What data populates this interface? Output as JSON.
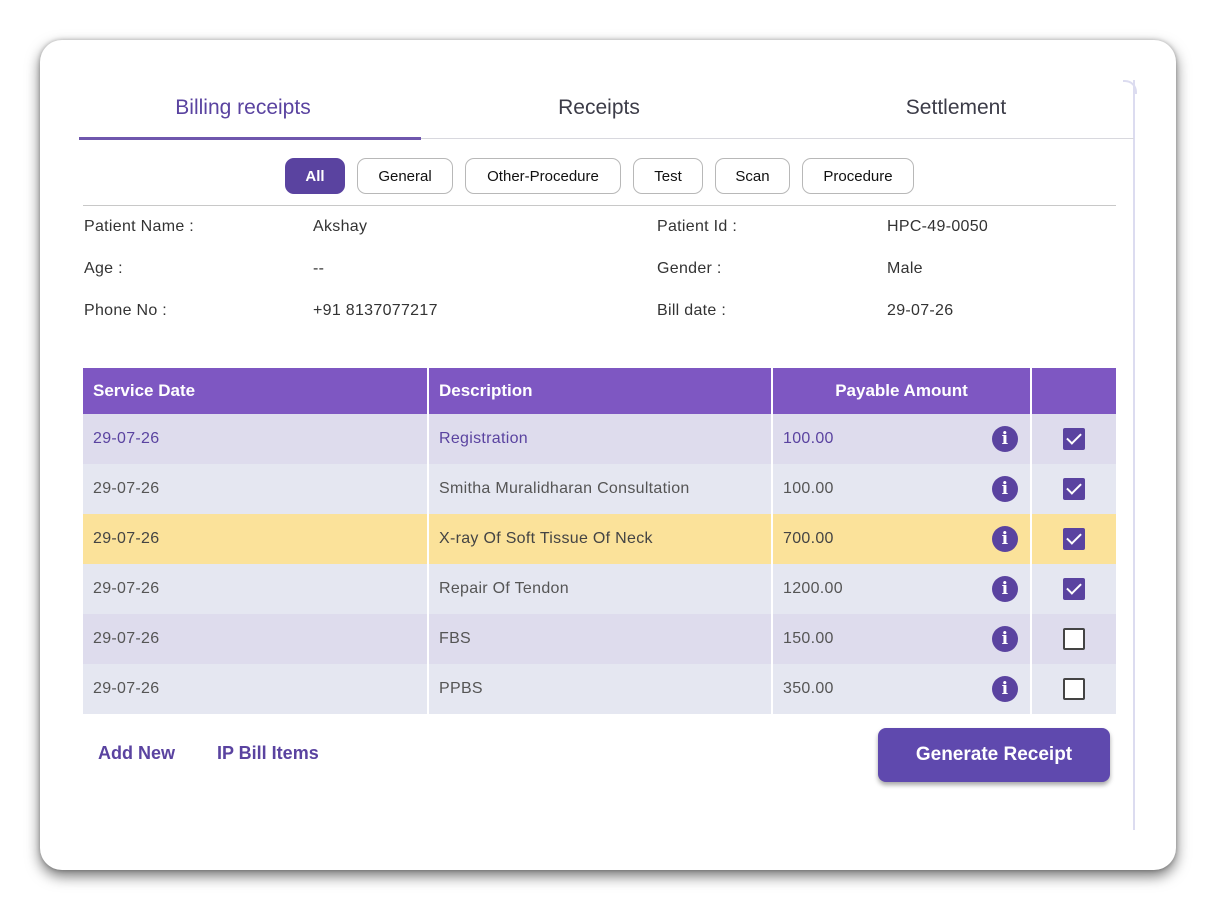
{
  "tabs": [
    {
      "label": "Billing receipts",
      "active": true
    },
    {
      "label": "Receipts",
      "active": false
    },
    {
      "label": "Settlement",
      "active": false
    }
  ],
  "filters": [
    {
      "label": "All",
      "active": true
    },
    {
      "label": "General",
      "active": false
    },
    {
      "label": "Other-Procedure",
      "active": false
    },
    {
      "label": "Test",
      "active": false
    },
    {
      "label": "Scan",
      "active": false
    },
    {
      "label": "Procedure",
      "active": false
    }
  ],
  "patient": {
    "name_label": "Patient Name :",
    "name": "Akshay",
    "id_label": "Patient Id :",
    "id": "HPC-49-0050",
    "age_label": "Age :",
    "age": "--",
    "gender_label": "Gender :",
    "gender": "Male",
    "phone_label": "Phone No :",
    "phone": "+91 8137077217",
    "bill_date_label": "Bill date :",
    "bill_date": "29-07-26"
  },
  "table": {
    "headers": [
      "Service Date",
      "Description",
      "Payable Amount",
      ""
    ],
    "rows": [
      {
        "date": "29-07-26",
        "description": "Registration",
        "amount": "100.00",
        "checked": true
      },
      {
        "date": "29-07-26",
        "description": "Smitha Muralidharan Consultation",
        "amount": "100.00",
        "checked": true
      },
      {
        "date": "29-07-26",
        "description": "X-ray Of Soft Tissue Of Neck",
        "amount": "700.00",
        "checked": true
      },
      {
        "date": "29-07-26",
        "description": "Repair Of Tendon",
        "amount": "1200.00",
        "checked": true
      },
      {
        "date": "29-07-26",
        "description": "FBS",
        "amount": "150.00",
        "checked": false
      },
      {
        "date": "29-07-26",
        "description": "PPBS",
        "amount": "350.00",
        "checked": false
      }
    ]
  },
  "actions": {
    "add_new": "Add New",
    "ip_bill_items": "IP Bill Items",
    "generate_receipt": "Generate Receipt"
  },
  "colors": {
    "accent": "#5a43a0",
    "header_bg": "#7e57c2",
    "highlight_row": "#fbe29a"
  },
  "icons": {
    "row_info": "info-icon",
    "row_check": "checkbox"
  }
}
